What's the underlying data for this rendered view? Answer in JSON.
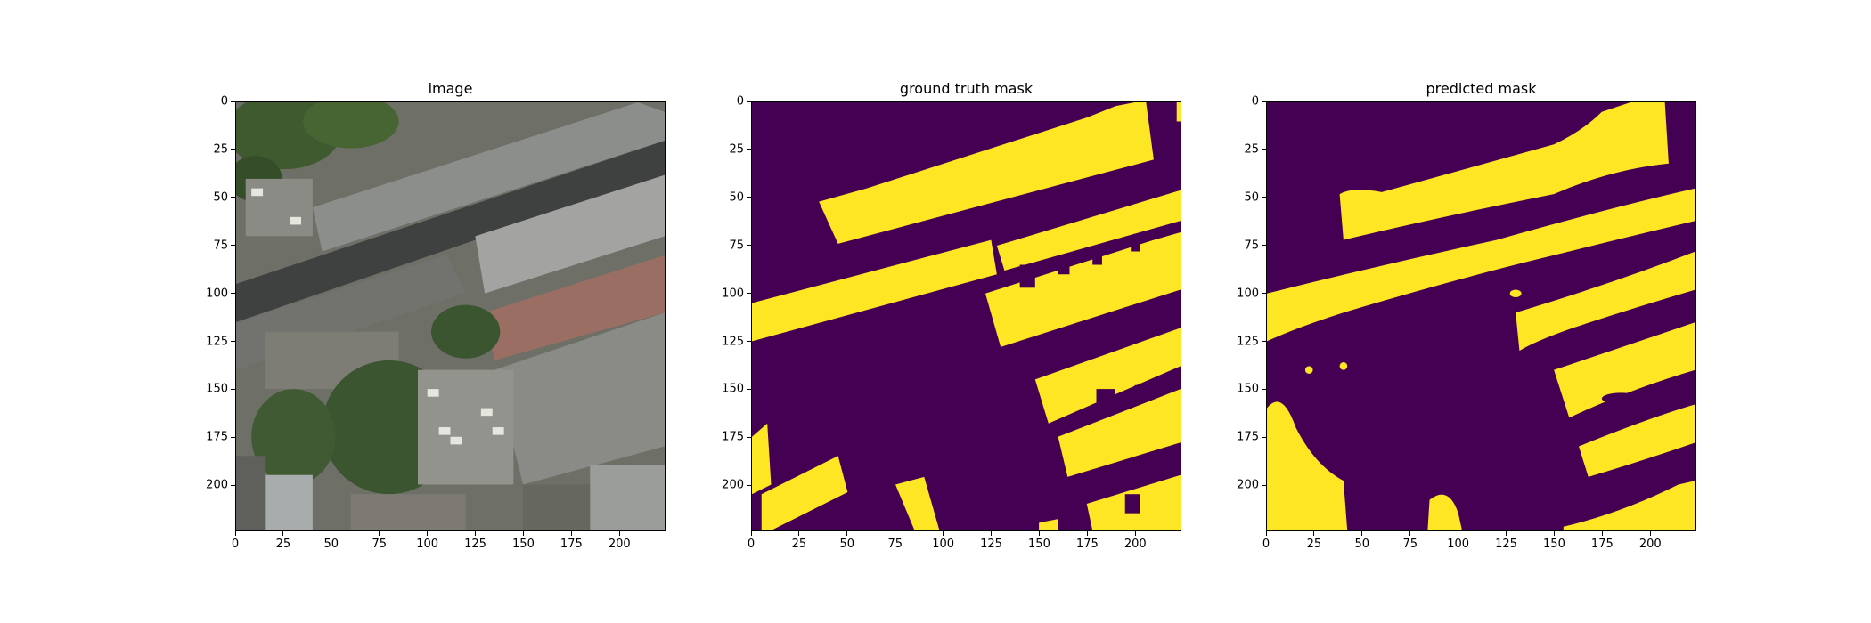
{
  "figure": {
    "panels": [
      {
        "id": "image",
        "title": "image",
        "kind": "aerial-photo"
      },
      {
        "id": "gt",
        "title": "ground truth mask",
        "kind": "binary-mask"
      },
      {
        "id": "pred",
        "title": "predicted mask",
        "kind": "binary-mask"
      }
    ],
    "x_ticks": [
      "0",
      "25",
      "50",
      "75",
      "100",
      "125",
      "150",
      "175",
      "200"
    ],
    "y_ticks": [
      "0",
      "25",
      "50",
      "75",
      "100",
      "125",
      "150",
      "175",
      "200"
    ],
    "x_tick_values": [
      0,
      25,
      50,
      75,
      100,
      125,
      150,
      175,
      200
    ],
    "y_tick_values": [
      0,
      25,
      50,
      75,
      100,
      125,
      150,
      175,
      200
    ],
    "extent": [
      0,
      224
    ],
    "colors": {
      "mask_background": "#440154",
      "mask_foreground": "#fde725",
      "photo_base": "#6e6f66"
    }
  }
}
